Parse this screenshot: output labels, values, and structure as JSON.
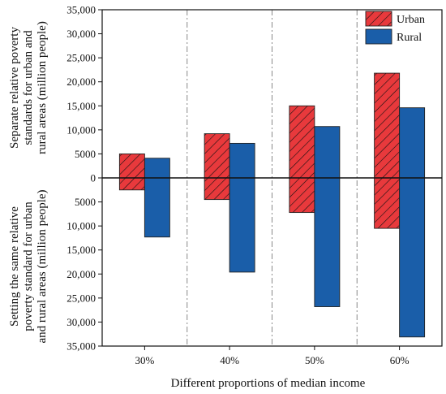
{
  "chart_data": {
    "type": "bar",
    "xlabel": "Different proportions of median income",
    "ylabel_top": [
      "Separate relative poverty",
      "standards for urban and",
      "rural areas (million people)"
    ],
    "ylabel_bottom": [
      "Setting the same relative",
      "poverty standard for urban",
      "and rural areas (million people)"
    ],
    "categories": [
      "30%",
      "40%",
      "50%",
      "60%"
    ],
    "y_ticks": [
      "35,000",
      "30,000",
      "25,000",
      "20,000",
      "15,000",
      "10,000",
      "5000",
      "0",
      "5000",
      "10,000",
      "15,000",
      "20,000",
      "25,000",
      "30,000",
      "35,000"
    ],
    "ylim": [
      -35000,
      35000
    ],
    "legend_placement": "top-right",
    "series": [
      {
        "name": "Urban",
        "color": "#e8393c",
        "pattern": "diagonal-hatch",
        "top_values": [
          5000,
          9200,
          15000,
          21800
        ],
        "bottom_values": [
          2500,
          4500,
          7200,
          10500
        ]
      },
      {
        "name": "Rural",
        "color": "#1a5ea9",
        "pattern": "solid",
        "top_values": [
          4100,
          7200,
          10700,
          14600
        ],
        "bottom_values": [
          12300,
          19600,
          26800,
          33100
        ]
      }
    ]
  }
}
